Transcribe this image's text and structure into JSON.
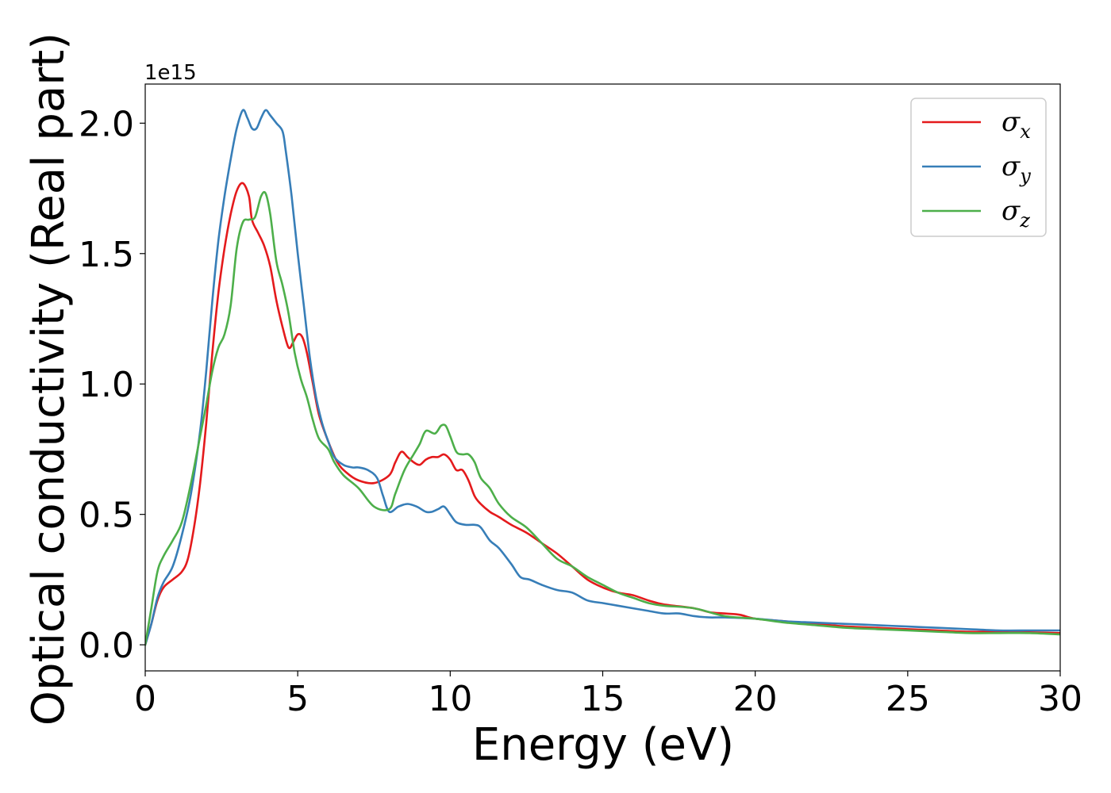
{
  "chart_data": {
    "type": "line",
    "xlabel": "Energy (eV)",
    "ylabel": "Optical conductivity (Real part)",
    "y_offset_label": "1e15",
    "xlim": [
      0,
      30
    ],
    "ylim": [
      -0.1,
      2.15
    ],
    "xticks": [
      0,
      5,
      10,
      15,
      20,
      25,
      30
    ],
    "xtick_labels": [
      "0",
      "5",
      "10",
      "15",
      "20",
      "25",
      "30"
    ],
    "yticks": [
      0.0,
      0.5,
      1.0,
      1.5,
      2.0
    ],
    "ytick_labels": [
      "0.0",
      "0.5",
      "1.0",
      "1.5",
      "2.0"
    ],
    "grid": false,
    "legend_position": "top-right",
    "series": [
      {
        "name": "σ_x",
        "color": "#e41a1c",
        "points": [
          [
            0,
            0
          ],
          [
            0.2,
            0.08
          ],
          [
            0.4,
            0.17
          ],
          [
            0.6,
            0.22
          ],
          [
            0.9,
            0.25
          ],
          [
            1.2,
            0.28
          ],
          [
            1.4,
            0.33
          ],
          [
            1.6,
            0.45
          ],
          [
            1.8,
            0.62
          ],
          [
            2.0,
            0.85
          ],
          [
            2.2,
            1.12
          ],
          [
            2.4,
            1.35
          ],
          [
            2.6,
            1.52
          ],
          [
            2.8,
            1.65
          ],
          [
            3.0,
            1.74
          ],
          [
            3.2,
            1.77
          ],
          [
            3.4,
            1.72
          ],
          [
            3.5,
            1.63
          ],
          [
            3.7,
            1.58
          ],
          [
            3.9,
            1.53
          ],
          [
            4.1,
            1.45
          ],
          [
            4.3,
            1.32
          ],
          [
            4.5,
            1.22
          ],
          [
            4.7,
            1.14
          ],
          [
            4.85,
            1.16
          ],
          [
            5.0,
            1.19
          ],
          [
            5.15,
            1.18
          ],
          [
            5.3,
            1.12
          ],
          [
            5.5,
            1.0
          ],
          [
            5.7,
            0.88
          ],
          [
            6.0,
            0.78
          ],
          [
            6.3,
            0.7
          ],
          [
            6.6,
            0.66
          ],
          [
            7.0,
            0.63
          ],
          [
            7.5,
            0.62
          ],
          [
            8.0,
            0.65
          ],
          [
            8.2,
            0.7
          ],
          [
            8.4,
            0.74
          ],
          [
            8.6,
            0.72
          ],
          [
            8.8,
            0.7
          ],
          [
            9.0,
            0.69
          ],
          [
            9.2,
            0.71
          ],
          [
            9.4,
            0.72
          ],
          [
            9.6,
            0.72
          ],
          [
            9.8,
            0.73
          ],
          [
            10.0,
            0.71
          ],
          [
            10.2,
            0.67
          ],
          [
            10.4,
            0.67
          ],
          [
            10.6,
            0.63
          ],
          [
            10.8,
            0.57
          ],
          [
            11.0,
            0.54
          ],
          [
            11.3,
            0.51
          ],
          [
            11.6,
            0.49
          ],
          [
            12.0,
            0.46
          ],
          [
            12.5,
            0.43
          ],
          [
            13.0,
            0.39
          ],
          [
            13.5,
            0.35
          ],
          [
            14.0,
            0.3
          ],
          [
            14.5,
            0.25
          ],
          [
            15.0,
            0.22
          ],
          [
            15.5,
            0.2
          ],
          [
            16.0,
            0.19
          ],
          [
            16.5,
            0.17
          ],
          [
            17.0,
            0.155
          ],
          [
            18.0,
            0.14
          ],
          [
            18.5,
            0.125
          ],
          [
            19.0,
            0.12
          ],
          [
            19.5,
            0.115
          ],
          [
            20.0,
            0.1
          ],
          [
            21.0,
            0.09
          ],
          [
            22.0,
            0.08
          ],
          [
            23.0,
            0.07
          ],
          [
            24.0,
            0.065
          ],
          [
            25.0,
            0.06
          ],
          [
            26.0,
            0.055
          ],
          [
            27.0,
            0.05
          ],
          [
            28.0,
            0.05
          ],
          [
            29.0,
            0.048
          ],
          [
            30.0,
            0.045
          ]
        ]
      },
      {
        "name": "σ_y",
        "color": "#377eb8",
        "points": [
          [
            0,
            0
          ],
          [
            0.2,
            0.08
          ],
          [
            0.4,
            0.18
          ],
          [
            0.6,
            0.24
          ],
          [
            0.9,
            0.3
          ],
          [
            1.2,
            0.42
          ],
          [
            1.5,
            0.58
          ],
          [
            1.8,
            0.82
          ],
          [
            2.0,
            1.05
          ],
          [
            2.2,
            1.32
          ],
          [
            2.4,
            1.55
          ],
          [
            2.6,
            1.72
          ],
          [
            2.8,
            1.86
          ],
          [
            3.0,
            1.98
          ],
          [
            3.2,
            2.05
          ],
          [
            3.35,
            2.02
          ],
          [
            3.5,
            1.98
          ],
          [
            3.65,
            1.98
          ],
          [
            3.8,
            2.02
          ],
          [
            3.95,
            2.05
          ],
          [
            4.1,
            2.03
          ],
          [
            4.3,
            2.0
          ],
          [
            4.5,
            1.97
          ],
          [
            4.6,
            1.9
          ],
          [
            4.8,
            1.72
          ],
          [
            5.0,
            1.5
          ],
          [
            5.2,
            1.3
          ],
          [
            5.4,
            1.1
          ],
          [
            5.6,
            0.95
          ],
          [
            5.8,
            0.85
          ],
          [
            6.0,
            0.78
          ],
          [
            6.2,
            0.72
          ],
          [
            6.5,
            0.69
          ],
          [
            6.8,
            0.68
          ],
          [
            7.0,
            0.68
          ],
          [
            7.3,
            0.67
          ],
          [
            7.6,
            0.64
          ],
          [
            7.8,
            0.57
          ],
          [
            8.0,
            0.51
          ],
          [
            8.3,
            0.53
          ],
          [
            8.6,
            0.54
          ],
          [
            8.9,
            0.53
          ],
          [
            9.2,
            0.51
          ],
          [
            9.4,
            0.51
          ],
          [
            9.6,
            0.52
          ],
          [
            9.8,
            0.53
          ],
          [
            10.0,
            0.5
          ],
          [
            10.2,
            0.47
          ],
          [
            10.5,
            0.46
          ],
          [
            10.8,
            0.46
          ],
          [
            11.0,
            0.45
          ],
          [
            11.3,
            0.4
          ],
          [
            11.6,
            0.37
          ],
          [
            12.0,
            0.31
          ],
          [
            12.3,
            0.26
          ],
          [
            12.6,
            0.25
          ],
          [
            13.0,
            0.23
          ],
          [
            13.5,
            0.21
          ],
          [
            14.0,
            0.2
          ],
          [
            14.5,
            0.17
          ],
          [
            15.0,
            0.16
          ],
          [
            15.5,
            0.15
          ],
          [
            16.0,
            0.14
          ],
          [
            16.5,
            0.13
          ],
          [
            17.0,
            0.12
          ],
          [
            17.5,
            0.12
          ],
          [
            18.0,
            0.11
          ],
          [
            18.5,
            0.105
          ],
          [
            19.0,
            0.105
          ],
          [
            20.0,
            0.1
          ],
          [
            21.0,
            0.09
          ],
          [
            22.0,
            0.085
          ],
          [
            23.0,
            0.08
          ],
          [
            24.0,
            0.075
          ],
          [
            25.0,
            0.07
          ],
          [
            26.0,
            0.065
          ],
          [
            27.0,
            0.06
          ],
          [
            28.0,
            0.055
          ],
          [
            29.0,
            0.055
          ],
          [
            30.0,
            0.055
          ]
        ]
      },
      {
        "name": "σ_z",
        "color": "#4daf4a",
        "points": [
          [
            0,
            0
          ],
          [
            0.2,
            0.14
          ],
          [
            0.4,
            0.28
          ],
          [
            0.6,
            0.34
          ],
          [
            0.9,
            0.4
          ],
          [
            1.2,
            0.47
          ],
          [
            1.5,
            0.62
          ],
          [
            1.8,
            0.8
          ],
          [
            2.0,
            0.92
          ],
          [
            2.2,
            1.05
          ],
          [
            2.4,
            1.14
          ],
          [
            2.6,
            1.19
          ],
          [
            2.8,
            1.3
          ],
          [
            3.0,
            1.52
          ],
          [
            3.2,
            1.62
          ],
          [
            3.4,
            1.63
          ],
          [
            3.6,
            1.64
          ],
          [
            3.8,
            1.72
          ],
          [
            3.95,
            1.73
          ],
          [
            4.1,
            1.65
          ],
          [
            4.3,
            1.47
          ],
          [
            4.5,
            1.38
          ],
          [
            4.7,
            1.27
          ],
          [
            4.9,
            1.12
          ],
          [
            5.1,
            1.02
          ],
          [
            5.3,
            0.95
          ],
          [
            5.5,
            0.86
          ],
          [
            5.7,
            0.79
          ],
          [
            6.0,
            0.75
          ],
          [
            6.2,
            0.7
          ],
          [
            6.5,
            0.65
          ],
          [
            7.0,
            0.6
          ],
          [
            7.5,
            0.53
          ],
          [
            8.0,
            0.52
          ],
          [
            8.2,
            0.58
          ],
          [
            8.5,
            0.67
          ],
          [
            8.8,
            0.73
          ],
          [
            9.0,
            0.77
          ],
          [
            9.2,
            0.82
          ],
          [
            9.5,
            0.81
          ],
          [
            9.7,
            0.84
          ],
          [
            9.85,
            0.84
          ],
          [
            10.0,
            0.8
          ],
          [
            10.2,
            0.74
          ],
          [
            10.4,
            0.73
          ],
          [
            10.6,
            0.73
          ],
          [
            10.8,
            0.7
          ],
          [
            11.0,
            0.64
          ],
          [
            11.3,
            0.6
          ],
          [
            11.6,
            0.54
          ],
          [
            12.0,
            0.49
          ],
          [
            12.5,
            0.45
          ],
          [
            13.0,
            0.39
          ],
          [
            13.5,
            0.33
          ],
          [
            14.0,
            0.3
          ],
          [
            14.5,
            0.26
          ],
          [
            15.0,
            0.23
          ],
          [
            15.5,
            0.2
          ],
          [
            16.0,
            0.18
          ],
          [
            16.5,
            0.16
          ],
          [
            17.0,
            0.15
          ],
          [
            18.0,
            0.14
          ],
          [
            19.0,
            0.11
          ],
          [
            20.0,
            0.1
          ],
          [
            21.0,
            0.085
          ],
          [
            22.0,
            0.075
          ],
          [
            23.0,
            0.065
          ],
          [
            24.0,
            0.06
          ],
          [
            25.0,
            0.055
          ],
          [
            26.0,
            0.05
          ],
          [
            27.0,
            0.045
          ],
          [
            28.0,
            0.045
          ],
          [
            29.0,
            0.045
          ],
          [
            30.0,
            0.04
          ]
        ]
      }
    ]
  },
  "legend": {
    "entries": [
      {
        "base": "σ",
        "sub": "x",
        "color": "#e41a1c"
      },
      {
        "base": "σ",
        "sub": "y",
        "color": "#377eb8"
      },
      {
        "base": "σ",
        "sub": "z",
        "color": "#4daf4a"
      }
    ]
  }
}
